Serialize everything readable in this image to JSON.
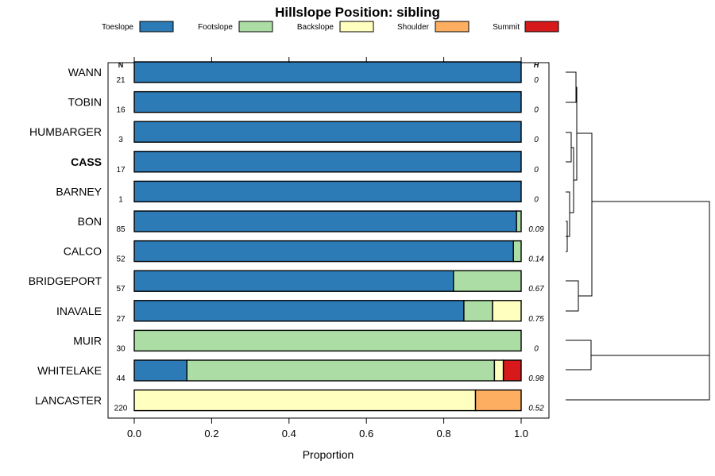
{
  "chart_data": {
    "type": "bar",
    "orientation": "horizontal",
    "stacked": true,
    "title": "Hillslope Position: sibling",
    "xlabel": "Proportion",
    "xlim": [
      0,
      1
    ],
    "xticks": [
      "0.0",
      "0.2",
      "0.4",
      "0.6",
      "0.8",
      "1.0"
    ],
    "legend_position": "top",
    "n_header": "N",
    "h_header": "H",
    "series": [
      {
        "name": "Toeslope",
        "color": "#2C7BB6"
      },
      {
        "name": "Footslope",
        "color": "#ABDDA4"
      },
      {
        "name": "Backslope",
        "color": "#FFFFBF"
      },
      {
        "name": "Shoulder",
        "color": "#FDAE61"
      },
      {
        "name": "Summit",
        "color": "#D7191C"
      }
    ],
    "rows": [
      {
        "label": "WANN",
        "bold": false,
        "n": "21",
        "h": "0",
        "values": [
          1.0,
          0,
          0,
          0,
          0
        ]
      },
      {
        "label": "TOBIN",
        "bold": false,
        "n": "16",
        "h": "0",
        "values": [
          1.0,
          0,
          0,
          0,
          0
        ]
      },
      {
        "label": "HUMBARGER",
        "bold": false,
        "n": "3",
        "h": "0",
        "values": [
          1.0,
          0,
          0,
          0,
          0
        ]
      },
      {
        "label": "CASS",
        "bold": true,
        "n": "17",
        "h": "0",
        "values": [
          1.0,
          0,
          0,
          0,
          0
        ]
      },
      {
        "label": "BARNEY",
        "bold": false,
        "n": "1",
        "h": "0",
        "values": [
          1.0,
          0,
          0,
          0,
          0
        ]
      },
      {
        "label": "BON",
        "bold": false,
        "n": "85",
        "h": "0.09",
        "values": [
          0.988,
          0.012,
          0,
          0,
          0
        ]
      },
      {
        "label": "CALCO",
        "bold": false,
        "n": "52",
        "h": "0.14",
        "values": [
          0.98,
          0.02,
          0,
          0,
          0
        ]
      },
      {
        "label": "BRIDGEPORT",
        "bold": false,
        "n": "57",
        "h": "0.67",
        "values": [
          0.825,
          0.175,
          0,
          0,
          0
        ]
      },
      {
        "label": "INAVALE",
        "bold": false,
        "n": "27",
        "h": "0.75",
        "values": [
          0.852,
          0.074,
          0.074,
          0,
          0
        ]
      },
      {
        "label": "MUIR",
        "bold": false,
        "n": "30",
        "h": "0",
        "values": [
          0,
          1.0,
          0,
          0,
          0
        ]
      },
      {
        "label": "WHITELAKE",
        "bold": false,
        "n": "44",
        "h": "0.98",
        "values": [
          0.136,
          0.795,
          0.023,
          0,
          0.046
        ]
      },
      {
        "label": "LANCASTER",
        "bold": false,
        "n": "220",
        "h": "0.52",
        "values": [
          0,
          0,
          0.882,
          0.118,
          0
        ]
      }
    ]
  }
}
